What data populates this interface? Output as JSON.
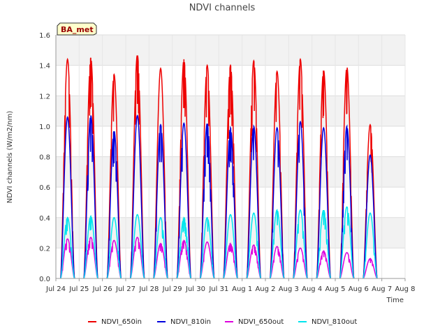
{
  "chart_data": {
    "type": "line",
    "title": "NDVI channels",
    "xlabel": "Time",
    "ylabel": "NDVI channels (W/m2/nm)",
    "badge": "BA_met",
    "ylim": [
      0,
      1.6
    ],
    "yticks": [
      "0.0",
      "0.2",
      "0.4",
      "0.6",
      "0.8",
      "1.0",
      "1.2",
      "1.4",
      "1.6"
    ],
    "ytick_values": [
      0,
      0.2,
      0.4,
      0.6,
      0.8,
      1.0,
      1.2,
      1.4,
      1.6
    ],
    "xticks": [
      "Jul 24",
      "Jul 25",
      "Jul 26",
      "Jul 27",
      "Jul 28",
      "Jul 29",
      "Jul 30",
      "Jul 31",
      "Aug 1",
      "Aug 2",
      "Aug 3",
      "Aug 4",
      "Aug 5",
      "Aug 6",
      "Aug 7",
      "Aug 8"
    ],
    "xlim_days": [
      0,
      15
    ],
    "x": [
      0.5,
      1.5,
      2.5,
      3.5,
      4.5,
      5.5,
      6.5,
      7.5,
      8.5,
      9.5,
      10.5,
      11.5,
      12.5,
      13.5
    ],
    "x_description": "days since Jul 24, daily solar-noon peaks",
    "series": [
      {
        "name": "NDVI_650in",
        "color": "#ee0000",
        "values": [
          1.44,
          1.45,
          1.34,
          1.47,
          1.38,
          1.44,
          1.4,
          1.4,
          1.43,
          1.36,
          1.44,
          1.37,
          1.39,
          1.01
        ]
      },
      {
        "name": "NDVI_810in",
        "color": "#0000dd",
        "values": [
          1.06,
          1.07,
          0.97,
          1.07,
          1.01,
          1.02,
          1.02,
          0.99,
          1.0,
          0.99,
          1.03,
          0.99,
          1.0,
          0.81
        ]
      },
      {
        "name": "NDVI_650out",
        "color": "#dd00dd",
        "values": [
          0.26,
          0.27,
          0.25,
          0.27,
          0.23,
          0.25,
          0.24,
          0.23,
          0.22,
          0.21,
          0.2,
          0.18,
          0.17,
          0.13
        ]
      },
      {
        "name": "NDVI_810out",
        "color": "#00e5ee",
        "values": [
          0.4,
          0.41,
          0.4,
          0.42,
          0.4,
          0.4,
          0.4,
          0.42,
          0.43,
          0.45,
          0.45,
          0.45,
          0.47,
          0.43
        ]
      }
    ],
    "grid": true,
    "legend_position": "bottom"
  }
}
